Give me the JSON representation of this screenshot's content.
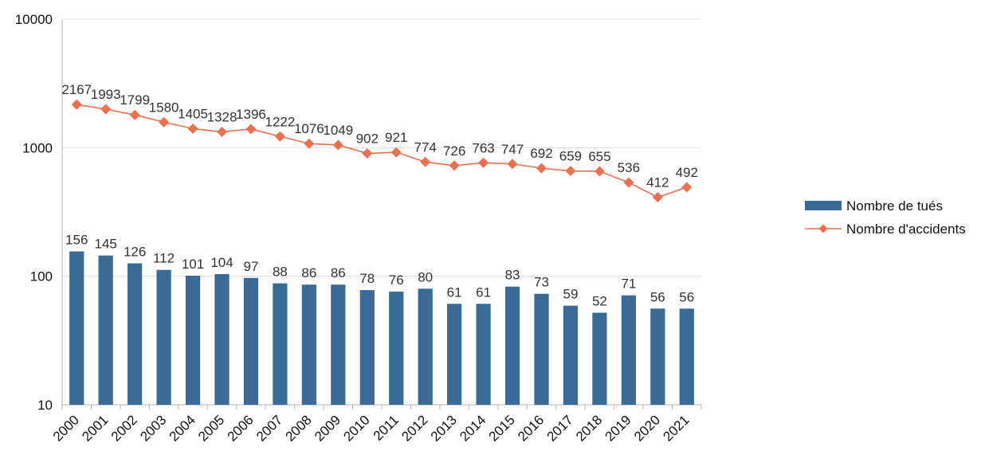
{
  "chart_data": {
    "type": "bar",
    "scale": "log",
    "ylim": [
      10,
      10000
    ],
    "yticks": [
      "10",
      "100",
      "1000",
      "10000"
    ],
    "grid": true,
    "legend_position": "right",
    "categories": [
      "2000",
      "2001",
      "2002",
      "2003",
      "2004",
      "2005",
      "2006",
      "2007",
      "2008",
      "2009",
      "2010",
      "2011",
      "2012",
      "2013",
      "2014",
      "2015",
      "2016",
      "2017",
      "2018",
      "2019",
      "2020",
      "2021"
    ],
    "series": [
      {
        "name": "Nombre de tués",
        "type": "bar",
        "color": "#3a6a96",
        "values": [
          156,
          145,
          126,
          112,
          101,
          104,
          97,
          88,
          86,
          86,
          78,
          76,
          80,
          61,
          61,
          83,
          73,
          59,
          52,
          71,
          56,
          56
        ]
      },
      {
        "name": "Nombre d'accidents",
        "type": "line",
        "color": "#ec6f50",
        "values": [
          2167,
          1993,
          1799,
          1580,
          1405,
          1328,
          1396,
          1222,
          1076,
          1049,
          902,
          921,
          774,
          726,
          763,
          747,
          692,
          659,
          655,
          536,
          412,
          492
        ]
      }
    ]
  }
}
